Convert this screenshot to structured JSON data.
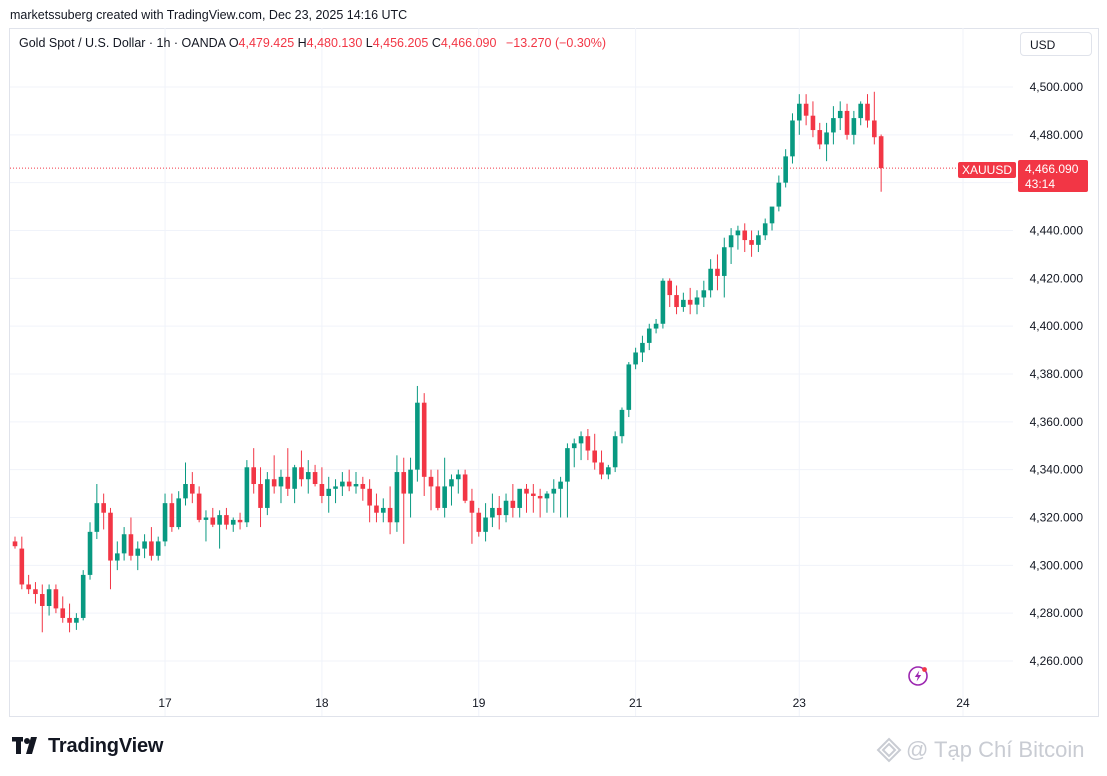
{
  "header": {
    "caption": "marketssuberg created with TradingView.com, Dec 23, 2025 14:16 UTC"
  },
  "legend": {
    "symbol_line": "Gold Spot / U.S. Dollar · 1h · OANDA",
    "open_label": "O",
    "open": "4,479.425",
    "high_label": "H",
    "high": "4,480.130",
    "low_label": "L",
    "low": "4,456.205",
    "close_label": "C",
    "close": "4,466.090",
    "change": "−13.270 (−0.30%)"
  },
  "currency_button": {
    "label": "USD"
  },
  "last_price": {
    "symbol": "XAUUSD",
    "price": "4,466.090",
    "countdown": "43:14",
    "value": 4466.09
  },
  "colors": {
    "up": "#089981",
    "down": "#f23645",
    "grid": "#f0f3fa",
    "text": "#131722"
  },
  "icons": {
    "alert": "lightning-bolt-icon",
    "logo": "tradingview-logo-icon",
    "watermark": "tapchibitcoin-logo-icon"
  },
  "footer": {
    "logo_text": "TradingView",
    "watermark_text": "@ Tạp Chí Bitcoin"
  },
  "chart_data": {
    "type": "candlestick",
    "ylim": [
      4250,
      4510
    ],
    "y_ticks": [
      4260,
      4280,
      4300,
      4320,
      4340,
      4360,
      4380,
      4400,
      4420,
      4440,
      4460,
      4480,
      4500
    ],
    "y_tick_labels": [
      "4,260.000",
      "4,280.000",
      "4,300.000",
      "4,320.000",
      "4,340.000",
      "4,360.000",
      "4,380.000",
      "4,400.000",
      "4,420.000",
      "4,440.000",
      "4,460.000",
      "4,480.000",
      "4,500.000"
    ],
    "x_ticks": [
      {
        "label": "17",
        "index": 22
      },
      {
        "label": "18",
        "index": 45
      },
      {
        "label": "19",
        "index": 68
      },
      {
        "label": "21",
        "index": 91
      },
      {
        "label": "23",
        "index": 115
      },
      {
        "label": "24",
        "index": 139
      }
    ],
    "candles": [
      [
        4310,
        4312,
        4307,
        4308
      ],
      [
        4307,
        4312,
        4290,
        4292
      ],
      [
        4292,
        4296,
        4288,
        4290
      ],
      [
        4290,
        4293,
        4284,
        4288
      ],
      [
        4288,
        4292,
        4272,
        4283
      ],
      [
        4283,
        4292,
        4279,
        4290
      ],
      [
        4290,
        4292,
        4280,
        4282
      ],
      [
        4282,
        4287,
        4276,
        4278
      ],
      [
        4278,
        4284,
        4272,
        4276
      ],
      [
        4276,
        4280,
        4273,
        4278
      ],
      [
        4278,
        4298,
        4277,
        4296
      ],
      [
        4296,
        4318,
        4294,
        4314
      ],
      [
        4314,
        4334,
        4311,
        4326
      ],
      [
        4326,
        4330,
        4315,
        4322
      ],
      [
        4322,
        4324,
        4290,
        4302
      ],
      [
        4302,
        4310,
        4298,
        4305
      ],
      [
        4305,
        4316,
        4302,
        4313
      ],
      [
        4313,
        4320,
        4302,
        4304
      ],
      [
        4304,
        4310,
        4298,
        4307
      ],
      [
        4307,
        4313,
        4303,
        4310
      ],
      [
        4310,
        4316,
        4302,
        4304
      ],
      [
        4304,
        4312,
        4302,
        4310
      ],
      [
        4310,
        4330,
        4308,
        4326
      ],
      [
        4326,
        4330,
        4314,
        4316
      ],
      [
        4316,
        4331,
        4315,
        4328
      ],
      [
        4328,
        4343,
        4325,
        4334
      ],
      [
        4334,
        4339,
        4326,
        4330
      ],
      [
        4330,
        4333,
        4318,
        4319
      ],
      [
        4319,
        4323,
        4310,
        4320
      ],
      [
        4320,
        4324,
        4316,
        4317
      ],
      [
        4317,
        4323,
        4307,
        4321
      ],
      [
        4321,
        4324,
        4315,
        4317
      ],
      [
        4317,
        4320,
        4314,
        4319
      ],
      [
        4319,
        4322,
        4315,
        4318
      ],
      [
        4318,
        4344,
        4316,
        4341
      ],
      [
        4341,
        4349,
        4330,
        4334
      ],
      [
        4334,
        4341,
        4316,
        4324
      ],
      [
        4324,
        4339,
        4321,
        4336
      ],
      [
        4336,
        4346,
        4330,
        4333
      ],
      [
        4333,
        4340,
        4326,
        4337
      ],
      [
        4337,
        4349,
        4329,
        4332
      ],
      [
        4332,
        4342,
        4326,
        4341
      ],
      [
        4341,
        4348,
        4333,
        4336
      ],
      [
        4336,
        4344,
        4330,
        4339
      ],
      [
        4339,
        4342,
        4333,
        4334
      ],
      [
        4334,
        4341,
        4326,
        4329
      ],
      [
        4329,
        4337,
        4322,
        4332
      ],
      [
        4332,
        4336,
        4326,
        4333
      ],
      [
        4333,
        4339,
        4329,
        4335
      ],
      [
        4335,
        4340,
        4331,
        4333
      ],
      [
        4333,
        4339,
        4330,
        4334
      ],
      [
        4334,
        4337,
        4327,
        4332
      ],
      [
        4332,
        4336,
        4318,
        4325
      ],
      [
        4325,
        4330,
        4318,
        4322
      ],
      [
        4322,
        4328,
        4318,
        4324
      ],
      [
        4324,
        4333,
        4313,
        4318
      ],
      [
        4318,
        4346,
        4314,
        4339
      ],
      [
        4339,
        4345,
        4309,
        4330
      ],
      [
        4330,
        4345,
        4320,
        4340
      ],
      [
        4340,
        4375,
        4335,
        4368
      ],
      [
        4368,
        4372,
        4329,
        4337
      ],
      [
        4337,
        4340,
        4323,
        4333
      ],
      [
        4333,
        4340,
        4323,
        4324
      ],
      [
        4324,
        4345,
        4320,
        4333
      ],
      [
        4333,
        4338,
        4325,
        4336
      ],
      [
        4336,
        4340,
        4330,
        4338
      ],
      [
        4338,
        4340,
        4326,
        4327
      ],
      [
        4327,
        4332,
        4309,
        4322
      ],
      [
        4322,
        4324,
        4312,
        4314
      ],
      [
        4314,
        4326,
        4310,
        4320
      ],
      [
        4320,
        4330,
        4316,
        4324
      ],
      [
        4324,
        4329,
        4315,
        4321
      ],
      [
        4321,
        4330,
        4318,
        4327
      ],
      [
        4327,
        4334,
        4320,
        4324
      ],
      [
        4324,
        4330,
        4320,
        4332
      ],
      [
        4332,
        4334,
        4322,
        4330
      ],
      [
        4330,
        4334,
        4322,
        4329
      ],
      [
        4329,
        4332,
        4320,
        4328
      ],
      [
        4328,
        4331,
        4322,
        4330
      ],
      [
        4330,
        4336,
        4322,
        4332
      ],
      [
        4332,
        4337,
        4320,
        4335
      ],
      [
        4335,
        4351,
        4320,
        4349
      ],
      [
        4349,
        4353,
        4341,
        4351
      ],
      [
        4351,
        4356,
        4344,
        4354
      ],
      [
        4354,
        4357,
        4344,
        4348
      ],
      [
        4348,
        4355,
        4340,
        4343
      ],
      [
        4343,
        4348,
        4336,
        4338
      ],
      [
        4338,
        4342,
        4336,
        4341
      ],
      [
        4341,
        4356,
        4339,
        4354
      ],
      [
        4354,
        4366,
        4351,
        4365
      ],
      [
        4365,
        4385,
        4362,
        4384
      ],
      [
        4384,
        4391,
        4382,
        4389
      ],
      [
        4389,
        4396,
        4385,
        4393
      ],
      [
        4393,
        4401,
        4390,
        4399
      ],
      [
        4399,
        4403,
        4397,
        4401
      ],
      [
        4401,
        4420,
        4399,
        4419
      ],
      [
        4419,
        4420,
        4408,
        4413
      ],
      [
        4413,
        4417,
        4405,
        4408
      ],
      [
        4408,
        4414,
        4406,
        4411
      ],
      [
        4411,
        4416,
        4405,
        4409
      ],
      [
        4409,
        4415,
        4405,
        4412
      ],
      [
        4412,
        4419,
        4408,
        4415
      ],
      [
        4415,
        4428,
        4412,
        4424
      ],
      [
        4424,
        4430,
        4415,
        4421
      ],
      [
        4421,
        4437,
        4412,
        4433
      ],
      [
        4433,
        4441,
        4426,
        4438
      ],
      [
        4438,
        4442,
        4432,
        4440
      ],
      [
        4440,
        4443,
        4431,
        4436
      ],
      [
        4436,
        4440,
        4429,
        4434
      ],
      [
        4434,
        4440,
        4431,
        4438
      ],
      [
        4438,
        4445,
        4436,
        4443
      ],
      [
        4443,
        4448,
        4440,
        4450
      ],
      [
        4450,
        4463,
        4448,
        4460
      ],
      [
        4460,
        4474,
        4458,
        4471
      ],
      [
        4471,
        4489,
        4468,
        4486
      ],
      [
        4486,
        4497,
        4480,
        4493
      ],
      [
        4493,
        4497,
        4484,
        4488
      ],
      [
        4488,
        4494,
        4479,
        4482
      ],
      [
        4482,
        4485,
        4474,
        4476
      ],
      [
        4476,
        4485,
        4469,
        4481
      ],
      [
        4481,
        4492,
        4476,
        4487
      ],
      [
        4487,
        4494,
        4482,
        4490
      ],
      [
        4490,
        4493,
        4478,
        4480
      ],
      [
        4480,
        4490,
        4476,
        4487
      ],
      [
        4487,
        4494,
        4484,
        4493
      ],
      [
        4493,
        4497,
        4483,
        4486
      ],
      [
        4486,
        4498,
        4476,
        4479
      ],
      [
        4479.425,
        4480.13,
        4456.205,
        4466.09
      ]
    ]
  }
}
